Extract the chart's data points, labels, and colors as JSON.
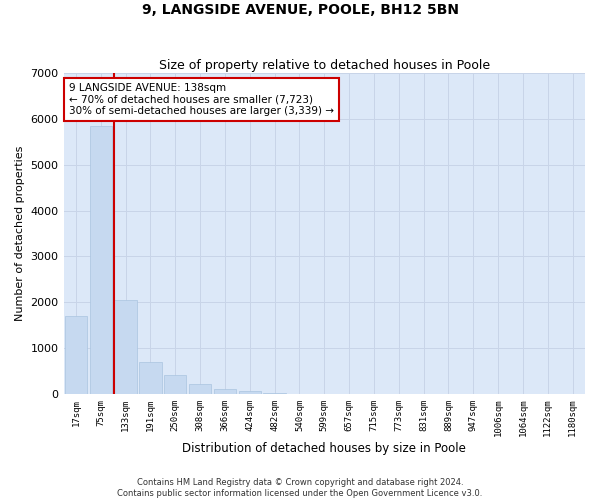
{
  "title": "9, LANGSIDE AVENUE, POOLE, BH12 5BN",
  "subtitle": "Size of property relative to detached houses in Poole",
  "xlabel": "Distribution of detached houses by size in Poole",
  "ylabel": "Number of detached properties",
  "categories": [
    "17sqm",
    "75sqm",
    "133sqm",
    "191sqm",
    "250sqm",
    "308sqm",
    "366sqm",
    "424sqm",
    "482sqm",
    "540sqm",
    "599sqm",
    "657sqm",
    "715sqm",
    "773sqm",
    "831sqm",
    "889sqm",
    "947sqm",
    "1006sqm",
    "1064sqm",
    "1122sqm",
    "1180sqm"
  ],
  "values": [
    1700,
    5850,
    2050,
    700,
    420,
    210,
    110,
    65,
    30,
    10,
    5,
    3,
    2,
    1,
    0,
    0,
    0,
    0,
    0,
    0,
    0
  ],
  "bar_color": "#c6d9f0",
  "bar_edge_color": "#aac4e0",
  "vline_x_index": 2,
  "vline_color": "#cc0000",
  "annotation_text": "9 LANGSIDE AVENUE: 138sqm\n← 70% of detached houses are smaller (7,723)\n30% of semi-detached houses are larger (3,339) →",
  "annotation_box_color": "white",
  "annotation_box_edge_color": "#cc0000",
  "ylim": [
    0,
    7000
  ],
  "yticks": [
    0,
    1000,
    2000,
    3000,
    4000,
    5000,
    6000,
    7000
  ],
  "grid_color": "#c8d4e8",
  "plot_background": "#dce8f8",
  "footer_line1": "Contains HM Land Registry data © Crown copyright and database right 2024.",
  "footer_line2": "Contains public sector information licensed under the Open Government Licence v3.0."
}
